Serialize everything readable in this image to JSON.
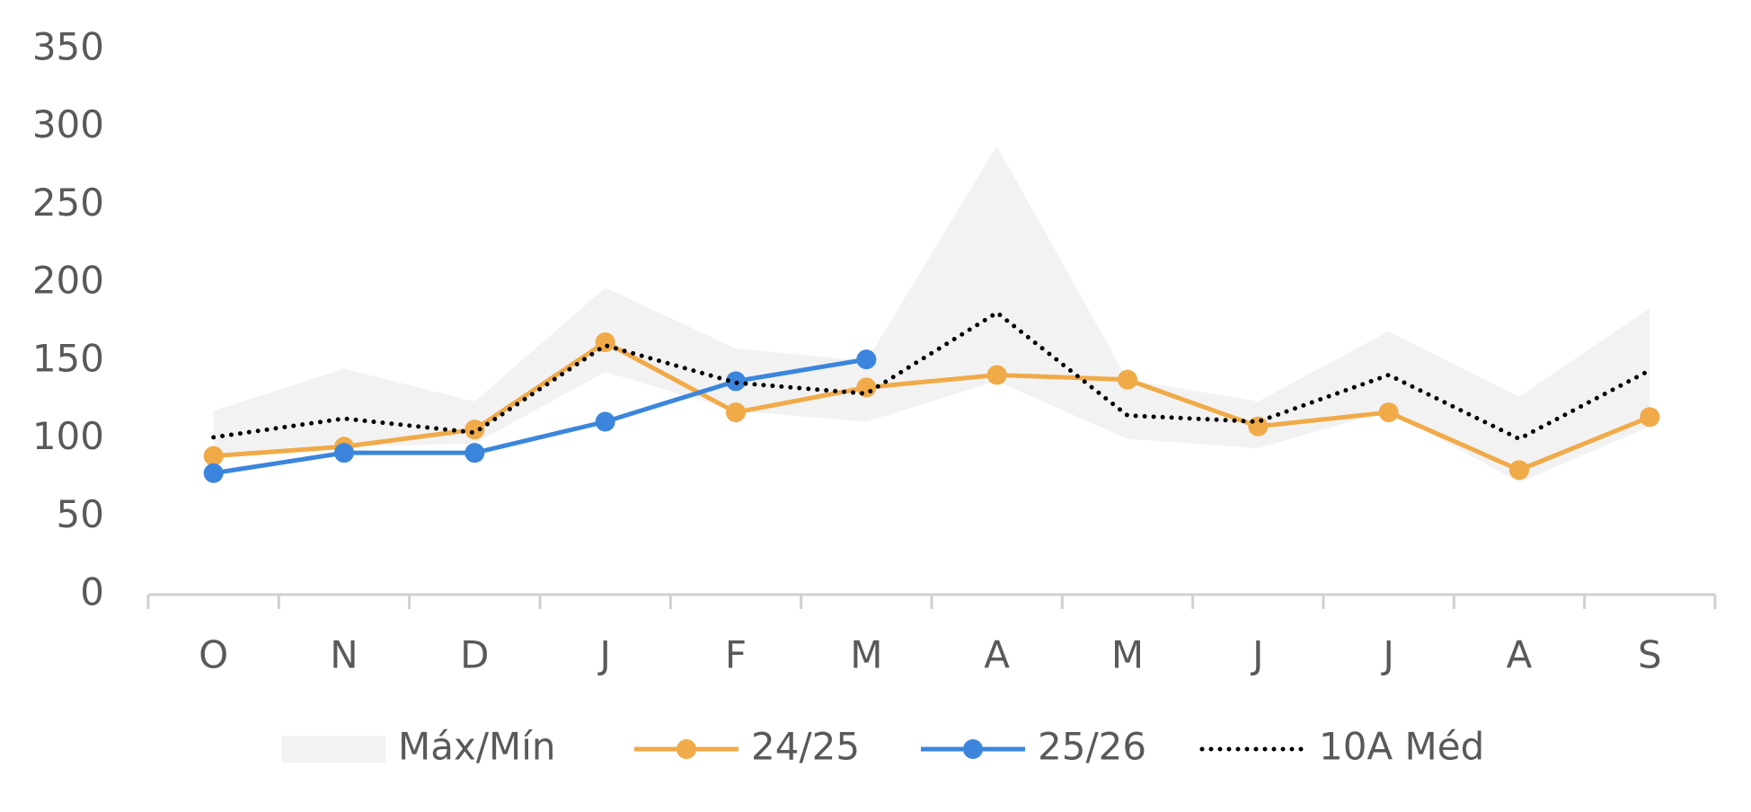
{
  "chart_data": {
    "type": "line",
    "categories": [
      "O",
      "N",
      "D",
      "J",
      "F",
      "M",
      "A",
      "M",
      "J",
      "J",
      "A",
      "S"
    ],
    "ylim": [
      0,
      350
    ],
    "yticks": [
      0,
      50,
      100,
      150,
      200,
      250,
      300,
      350
    ],
    "legend": "bottom",
    "series": [
      {
        "name": "Máx/Mín",
        "type": "band",
        "color": "#f2f2f2",
        "high": [
          118,
          145,
          124,
          197,
          158,
          150,
          288,
          138,
          124,
          169,
          127,
          184
        ],
        "low": [
          90,
          95,
          97,
          143,
          118,
          111,
          137,
          100,
          94,
          118,
          72,
          108
        ]
      },
      {
        "name": "24/25",
        "color": "#f0aa48",
        "marker": true,
        "values": [
          89,
          95,
          106,
          162,
          117,
          133,
          141,
          138,
          108,
          117,
          80,
          114
        ]
      },
      {
        "name": "25/26",
        "color": "#3b86dc",
        "marker": true,
        "values": [
          78,
          91,
          91,
          111,
          137,
          151,
          null,
          null,
          null,
          null,
          null,
          null
        ]
      },
      {
        "name": "10A Méd",
        "color": "#000000",
        "dash": "dotted",
        "values": [
          101,
          113,
          104,
          160,
          136,
          129,
          181,
          115,
          111,
          141,
          100,
          144
        ]
      }
    ]
  }
}
